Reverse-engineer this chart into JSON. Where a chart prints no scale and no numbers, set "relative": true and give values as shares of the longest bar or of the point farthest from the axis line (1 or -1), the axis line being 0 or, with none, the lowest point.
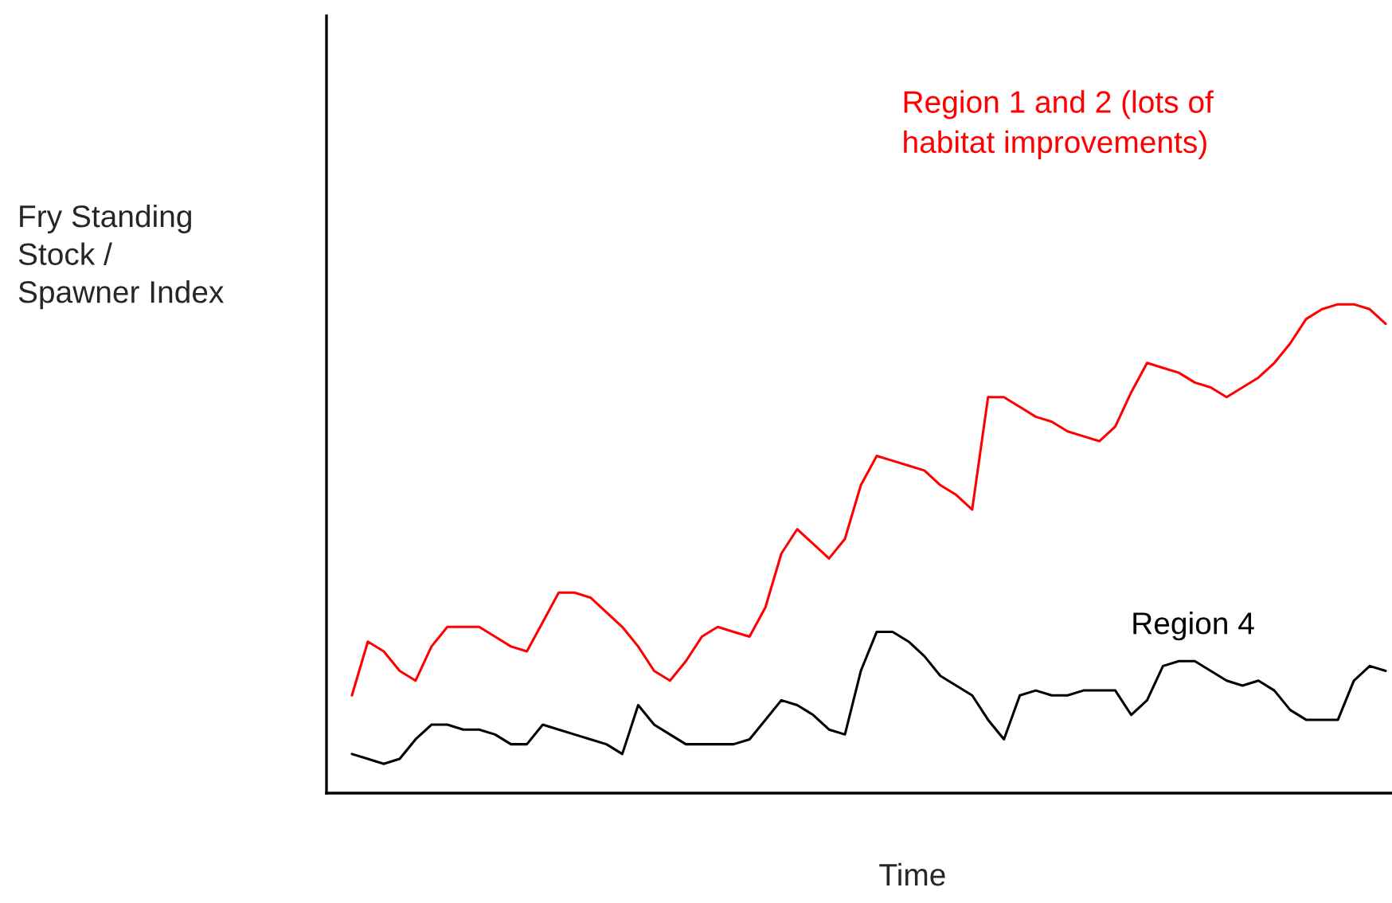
{
  "chart_data": {
    "type": "line",
    "relative": true,
    "xlabel": "Time",
    "ylabel": "Fry Standing\nStock /\nSpawner Index",
    "legend": false,
    "categories": [
      null,
      null,
      null,
      null,
      null,
      null,
      null,
      null,
      null,
      null,
      null,
      null,
      null,
      null,
      null,
      null,
      null,
      null,
      null,
      null,
      null,
      null,
      null,
      null,
      null,
      null,
      null,
      null,
      null,
      null,
      null,
      null,
      null,
      null,
      null,
      null,
      null,
      null,
      null,
      null,
      null,
      null,
      null,
      null,
      null,
      null,
      null,
      null,
      null,
      null,
      null,
      null,
      null,
      null,
      null,
      null,
      null,
      null,
      null,
      null,
      null,
      null,
      null,
      null,
      null,
      null
    ],
    "series": [
      {
        "name": "Region 1 and 2 (lots of\nhabitat improvements)",
        "color": "#ff0000",
        "values": [
          0.2,
          0.31,
          0.29,
          0.25,
          0.23,
          0.3,
          0.34,
          0.34,
          0.34,
          0.32,
          0.3,
          0.29,
          0.35,
          0.41,
          0.41,
          0.4,
          0.37,
          0.34,
          0.3,
          0.25,
          0.23,
          0.27,
          0.32,
          0.34,
          0.33,
          0.32,
          0.38,
          0.49,
          0.54,
          0.51,
          0.48,
          0.52,
          0.63,
          0.69,
          0.68,
          0.67,
          0.66,
          0.63,
          0.61,
          0.58,
          0.81,
          0.81,
          0.79,
          0.77,
          0.76,
          0.74,
          0.73,
          0.72,
          0.75,
          0.82,
          0.88,
          0.87,
          0.86,
          0.84,
          0.83,
          0.81,
          0.83,
          0.85,
          0.88,
          0.92,
          0.97,
          0.99,
          1.0,
          1.0,
          0.99,
          0.96
        ]
      },
      {
        "name": "Region 4",
        "color": "#000000",
        "values": [
          0.08,
          0.07,
          0.06,
          0.07,
          0.11,
          0.14,
          0.14,
          0.13,
          0.13,
          0.12,
          0.1,
          0.1,
          0.14,
          0.13,
          0.12,
          0.11,
          0.1,
          0.08,
          0.18,
          0.14,
          0.12,
          0.1,
          0.1,
          0.1,
          0.1,
          0.11,
          0.15,
          0.19,
          0.18,
          0.16,
          0.13,
          0.12,
          0.25,
          0.33,
          0.33,
          0.31,
          0.28,
          0.24,
          0.22,
          0.2,
          0.15,
          0.11,
          0.2,
          0.21,
          0.2,
          0.2,
          0.21,
          0.21,
          0.21,
          0.16,
          0.19,
          0.26,
          0.27,
          0.27,
          0.25,
          0.23,
          0.22,
          0.23,
          0.21,
          0.17,
          0.15,
          0.15,
          0.15,
          0.23,
          0.26,
          0.25
        ]
      }
    ]
  }
}
